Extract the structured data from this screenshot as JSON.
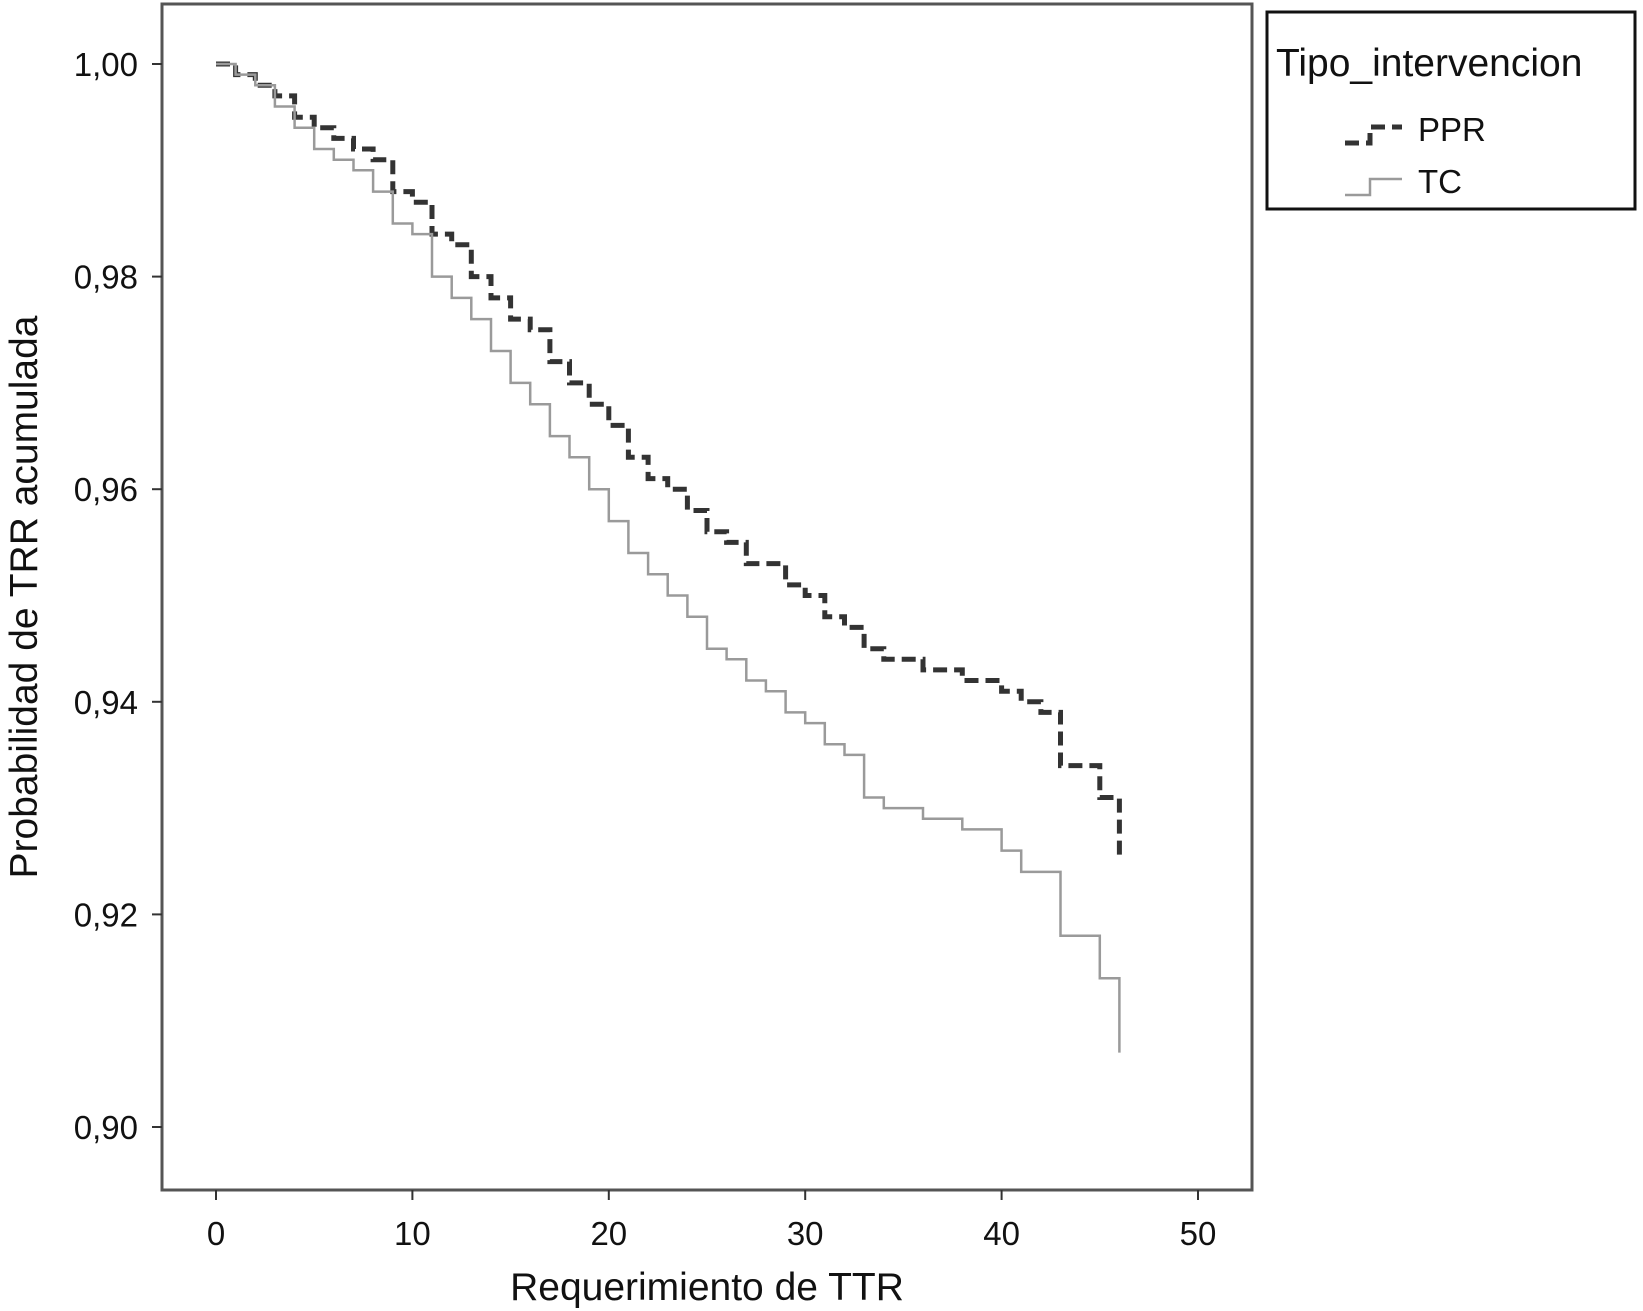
{
  "chart_data": {
    "type": "line",
    "title": "",
    "xlabel": "Requerimiento de TTR",
    "ylabel": "Probabilidad de TRR acumulada",
    "xlim": [
      0,
      50
    ],
    "ylim": [
      0.9,
      1.0
    ],
    "x_ticks": [
      0,
      10,
      20,
      30,
      40,
      50
    ],
    "y_ticks": [
      {
        "value": 0.9,
        "label": "0,90"
      },
      {
        "value": 0.92,
        "label": "0,92"
      },
      {
        "value": 0.94,
        "label": "0,94"
      },
      {
        "value": 0.96,
        "label": "0,96"
      },
      {
        "value": 0.98,
        "label": "0,98"
      },
      {
        "value": 1.0,
        "label": "1,00"
      }
    ],
    "grid": false,
    "legend": {
      "title": "Tipo_intervencion",
      "position": "top-right, outside plot"
    },
    "series": [
      {
        "name": "PPR",
        "style": "dashed",
        "color": "#333333",
        "points": [
          [
            0,
            1.0
          ],
          [
            1,
            0.999
          ],
          [
            2,
            0.998
          ],
          [
            3,
            0.997
          ],
          [
            4,
            0.995
          ],
          [
            5,
            0.994
          ],
          [
            6,
            0.993
          ],
          [
            7,
            0.992
          ],
          [
            8,
            0.991
          ],
          [
            9,
            0.988
          ],
          [
            10,
            0.987
          ],
          [
            11,
            0.984
          ],
          [
            12,
            0.983
          ],
          [
            13,
            0.98
          ],
          [
            14,
            0.978
          ],
          [
            15,
            0.976
          ],
          [
            16,
            0.975
          ],
          [
            17,
            0.972
          ],
          [
            18,
            0.97
          ],
          [
            19,
            0.968
          ],
          [
            20,
            0.966
          ],
          [
            21,
            0.963
          ],
          [
            22,
            0.961
          ],
          [
            23,
            0.96
          ],
          [
            24,
            0.958
          ],
          [
            25,
            0.956
          ],
          [
            26,
            0.955
          ],
          [
            27,
            0.953
          ],
          [
            28,
            0.953
          ],
          [
            29,
            0.951
          ],
          [
            30,
            0.95
          ],
          [
            31,
            0.948
          ],
          [
            32,
            0.947
          ],
          [
            33,
            0.945
          ],
          [
            34,
            0.944
          ],
          [
            36,
            0.943
          ],
          [
            38,
            0.942
          ],
          [
            40,
            0.941
          ],
          [
            41,
            0.94
          ],
          [
            42,
            0.939
          ],
          [
            43,
            0.934
          ],
          [
            45,
            0.931
          ],
          [
            46,
            0.925
          ]
        ]
      },
      {
        "name": "TC",
        "style": "solid",
        "color": "#9a9a9a",
        "points": [
          [
            0,
            1.0
          ],
          [
            1,
            0.999
          ],
          [
            2,
            0.998
          ],
          [
            3,
            0.996
          ],
          [
            4,
            0.994
          ],
          [
            5,
            0.992
          ],
          [
            6,
            0.991
          ],
          [
            7,
            0.99
          ],
          [
            8,
            0.988
          ],
          [
            9,
            0.985
          ],
          [
            10,
            0.984
          ],
          [
            11,
            0.98
          ],
          [
            12,
            0.978
          ],
          [
            13,
            0.976
          ],
          [
            14,
            0.973
          ],
          [
            15,
            0.97
          ],
          [
            16,
            0.968
          ],
          [
            17,
            0.965
          ],
          [
            18,
            0.963
          ],
          [
            19,
            0.96
          ],
          [
            20,
            0.957
          ],
          [
            21,
            0.954
          ],
          [
            22,
            0.952
          ],
          [
            23,
            0.95
          ],
          [
            24,
            0.948
          ],
          [
            25,
            0.945
          ],
          [
            26,
            0.944
          ],
          [
            27,
            0.942
          ],
          [
            28,
            0.941
          ],
          [
            29,
            0.939
          ],
          [
            30,
            0.938
          ],
          [
            31,
            0.936
          ],
          [
            32,
            0.935
          ],
          [
            33,
            0.931
          ],
          [
            34,
            0.93
          ],
          [
            36,
            0.929
          ],
          [
            38,
            0.928
          ],
          [
            40,
            0.926
          ],
          [
            41,
            0.924
          ],
          [
            43,
            0.918
          ],
          [
            45,
            0.914
          ],
          [
            46,
            0.907
          ]
        ]
      }
    ]
  }
}
